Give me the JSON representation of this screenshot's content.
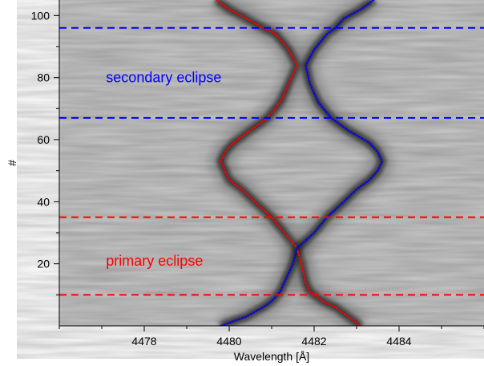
{
  "chart_data": {
    "type": "heatmap",
    "description_of_values": "trailed spectrogram of a spectral line vs spectrum number; dark = absorption",
    "xlabel": "Wavelength [Å]",
    "ylabel": "#",
    "xlim": [
      4476.0,
      4486.0
    ],
    "ylim": [
      0,
      105
    ],
    "xticks": [
      4478,
      4480,
      4482,
      4484
    ],
    "yticks": [
      20,
      40,
      60,
      80,
      100
    ],
    "xtick_labels": [
      "4478",
      "4480",
      "4482",
      "4484"
    ],
    "ytick_labels": [
      "20",
      "40",
      "60",
      "80",
      "100"
    ],
    "grid": false,
    "colors": {
      "primary": "#ff0000",
      "secondary": "#0000ff",
      "background_gray": "#c9c9c9",
      "absorption": "#111111"
    },
    "annotations": [
      {
        "text": "secondary eclipse",
        "x": 4477.1,
        "y": 80,
        "color": "#0000ff"
      },
      {
        "text": "primary eclipse",
        "x": 4477.1,
        "y": 21,
        "color": "#ff0000"
      }
    ],
    "eclipse_lines": [
      {
        "y": 96,
        "color": "#0000ff",
        "style": "dashed"
      },
      {
        "y": 67,
        "color": "#0000ff",
        "style": "dashed"
      },
      {
        "y": 35,
        "color": "#ff0000",
        "style": "dashed"
      },
      {
        "y": 10,
        "color": "#ff0000",
        "style": "dashed"
      }
    ],
    "series": [
      {
        "color": "#ff0000",
        "points": [
          [
            4483.1,
            0
          ],
          [
            4482.8,
            3
          ],
          [
            4482.5,
            6
          ],
          [
            4482.2,
            8
          ],
          [
            4481.9,
            11
          ],
          [
            4481.8,
            14
          ],
          [
            4481.7,
            20
          ],
          [
            4481.6,
            25
          ],
          [
            4481.3,
            30
          ],
          [
            4481.0,
            35
          ],
          [
            4480.6,
            40
          ],
          [
            4480.3,
            44
          ],
          [
            4480.0,
            47
          ],
          [
            4479.9,
            50
          ],
          [
            4479.8,
            53
          ],
          [
            4479.9,
            56
          ],
          [
            4480.1,
            59
          ],
          [
            4480.5,
            63
          ],
          [
            4480.9,
            67
          ],
          [
            4481.2,
            72
          ],
          [
            4481.4,
            78
          ],
          [
            4481.6,
            84
          ],
          [
            4481.4,
            89
          ],
          [
            4481.1,
            94
          ],
          [
            4480.8,
            96
          ],
          [
            4480.4,
            99
          ],
          [
            4480.0,
            102
          ],
          [
            4479.7,
            105
          ]
        ]
      },
      {
        "color": "#0000ff",
        "points": [
          [
            4479.8,
            0
          ],
          [
            4480.4,
            3
          ],
          [
            4480.8,
            6
          ],
          [
            4481.0,
            8
          ],
          [
            4481.2,
            11
          ],
          [
            4481.3,
            14
          ],
          [
            4481.5,
            20
          ],
          [
            4481.6,
            25
          ],
          [
            4482.0,
            30
          ],
          [
            4482.3,
            35
          ],
          [
            4482.7,
            40
          ],
          [
            4483.0,
            44
          ],
          [
            4483.3,
            47
          ],
          [
            4483.5,
            50
          ],
          [
            4483.6,
            53
          ],
          [
            4483.5,
            56
          ],
          [
            4483.3,
            59
          ],
          [
            4482.8,
            63
          ],
          [
            4482.4,
            67
          ],
          [
            4482.1,
            72
          ],
          [
            4481.9,
            78
          ],
          [
            4481.8,
            84
          ],
          [
            4482.0,
            89
          ],
          [
            4482.3,
            94
          ],
          [
            4482.5,
            96
          ],
          [
            4482.7,
            99
          ],
          [
            4483.1,
            102
          ],
          [
            4483.4,
            105
          ]
        ]
      }
    ]
  }
}
